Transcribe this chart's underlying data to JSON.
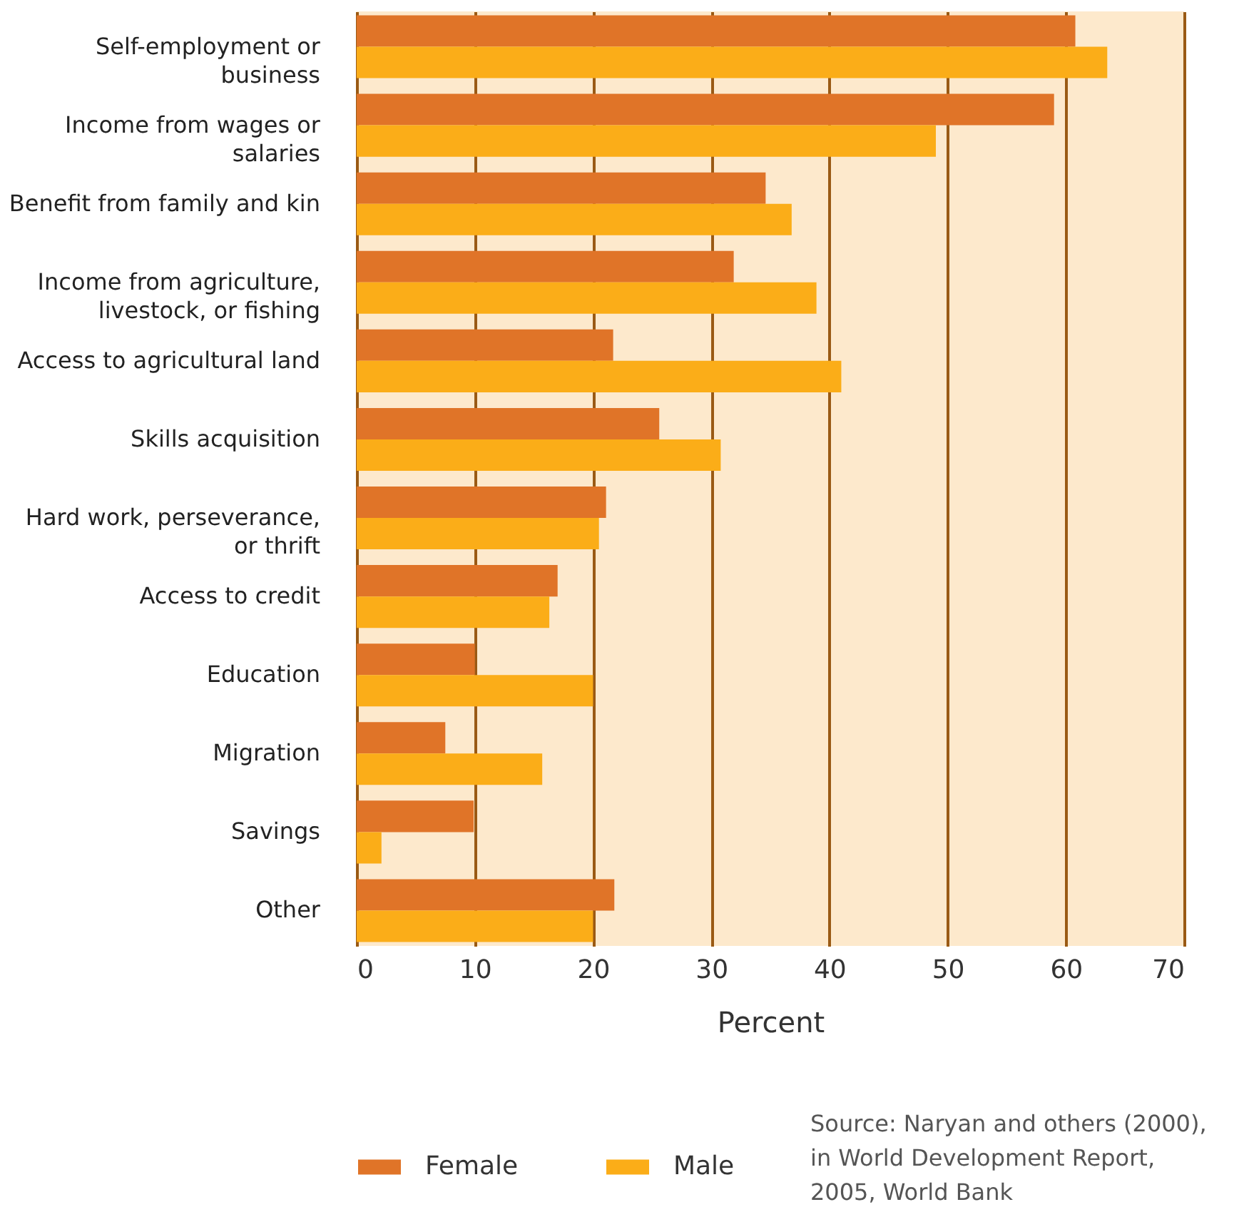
{
  "chart_data": {
    "type": "bar",
    "orientation": "horizontal",
    "xlabel": "Percent",
    "categories": [
      "Self-employment or\nbusiness",
      "Income from wages or\nsalaries",
      "Benefit from family and kin",
      "Income from agriculture,\nlivestock, or fishing",
      "Access to agricultural land",
      "Skills acquisition",
      "Hard work, perseverance,\nor thrift",
      "Access to credit",
      "Education",
      "Migration",
      "Savings",
      "Other"
    ],
    "series": [
      {
        "name": "Female",
        "color": "#e07428",
        "values": [
          60.8,
          59.0,
          34.6,
          31.9,
          21.7,
          25.6,
          21.1,
          17.0,
          10.0,
          7.5,
          9.9,
          21.8
        ]
      },
      {
        "name": "Male",
        "color": "#fbad18",
        "values": [
          63.5,
          49.0,
          36.8,
          38.9,
          41.0,
          30.8,
          20.5,
          16.3,
          20.0,
          15.7,
          2.1,
          20.0
        ]
      }
    ],
    "xlim": [
      0,
      70
    ],
    "xticks": [
      0,
      10,
      20,
      30,
      40,
      50,
      60,
      70
    ],
    "grid": "x",
    "legend": "bottom",
    "annotations": [
      "Source: Naryan and others (2000), in World Development Report, 2005, World Bank"
    ]
  }
}
